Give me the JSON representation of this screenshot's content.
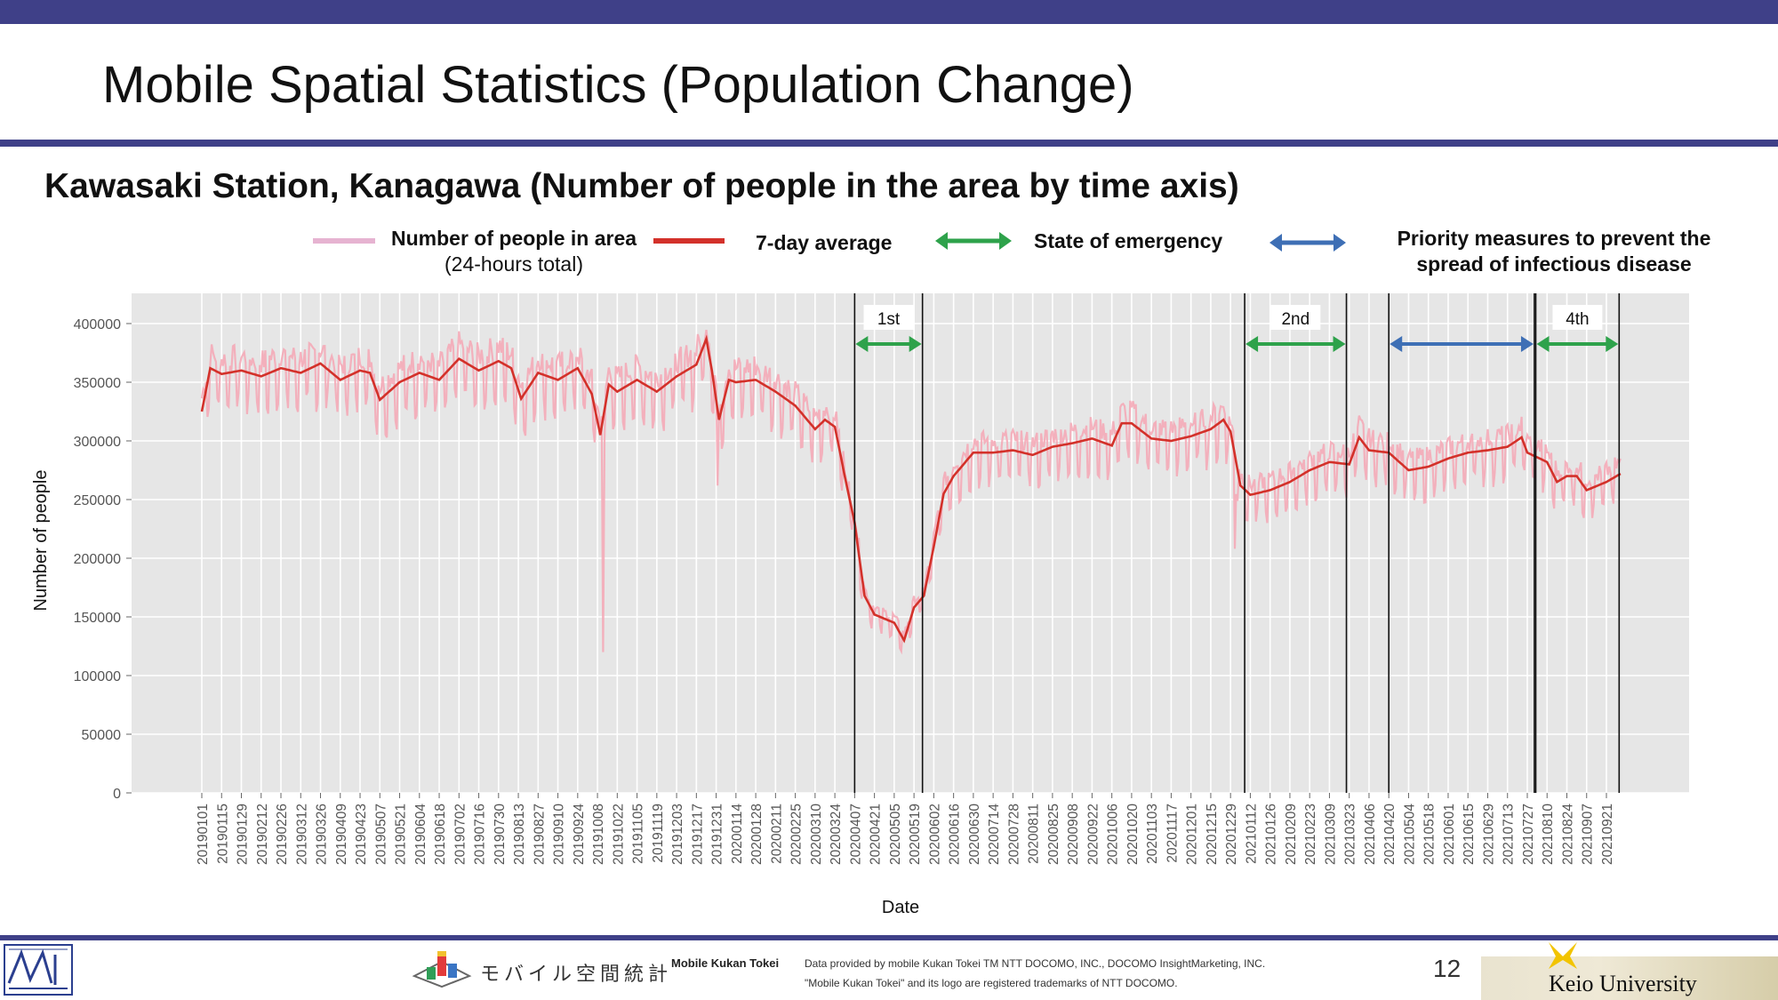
{
  "slide": {
    "title": "Mobile Spatial Statistics (Population Change)",
    "subtitle": "Kawasaki Station, Kanagawa (Number of people in the area by time axis)",
    "page_number": "12"
  },
  "legend": {
    "raw_line1": "Number of people in area",
    "raw_line2": "(24-hours total)",
    "avg": "7-day average",
    "emergency": "State of emergency",
    "priority_line1": "Priority measures to prevent the",
    "priority_line2": "spread of infectious disease"
  },
  "colors": {
    "band": "#3f4088",
    "raw": "#f4a6b4",
    "avg": "#d3312a",
    "emergency": "#2ea24b",
    "priority": "#3e6fb5",
    "panel": "#e6e6e6",
    "legend_raw": "#e6b3d1"
  },
  "footer": {
    "brand_jp": "モバイル空間統計",
    "brand_en": "Mobile Kukan Tokei",
    "credit_line1": "Data provided by mobile Kukan Tokei TM NTT DOCOMO, INC., DOCOMO InsightMarketing, INC.",
    "credit_line2": "\"Mobile Kukan Tokei\" and its logo are registered trademarks of NTT DOCOMO.",
    "university": "Keio University"
  },
  "chart_data": {
    "type": "line",
    "xlabel": "Date",
    "ylabel": "Number of people",
    "ylim": [
      0,
      420000
    ],
    "y_ticks": [
      "0",
      "50000",
      "100000",
      "150000",
      "200000",
      "250000",
      "300000",
      "350000",
      "400000"
    ],
    "x_range": [
      "2019-01-01",
      "2021-10-01"
    ],
    "x_tick_labels": [
      "20190101",
      "20190115",
      "20190129",
      "20190212",
      "20190226",
      "20190312",
      "20190326",
      "20190409",
      "20190423",
      "20190507",
      "20190521",
      "20190604",
      "20190618",
      "20190702",
      "20190716",
      "20190730",
      "20190813",
      "20190827",
      "20190910",
      "20190924",
      "20191008",
      "20191022",
      "20191105",
      "20191119",
      "20191203",
      "20191217",
      "20191231",
      "20200114",
      "20200128",
      "20200211",
      "20200225",
      "20200310",
      "20200324",
      "20200407",
      "20200421",
      "20200505",
      "20200519",
      "20200602",
      "20200616",
      "20200630",
      "20200714",
      "20200728",
      "20200811",
      "20200825",
      "20200908",
      "20200922",
      "20201006",
      "20201020",
      "20201103",
      "20201117",
      "20201201",
      "20201215",
      "20201229",
      "20210112",
      "20210126",
      "20210209",
      "20210223",
      "20210309",
      "20210323",
      "20210406",
      "20210420",
      "20210504",
      "20210518",
      "20210601",
      "20210615",
      "20210629",
      "20210713",
      "20210727",
      "20210810",
      "20210824",
      "20210907",
      "20210921"
    ],
    "grid": true,
    "legend_position": "top",
    "series": [
      {
        "name": "7-day average",
        "points": [
          [
            "2019-01-01",
            325000
          ],
          [
            "2019-01-07",
            362000
          ],
          [
            "2019-01-15",
            357000
          ],
          [
            "2019-01-29",
            360000
          ],
          [
            "2019-02-12",
            355000
          ],
          [
            "2019-02-26",
            362000
          ],
          [
            "2019-03-12",
            358000
          ],
          [
            "2019-03-26",
            366000
          ],
          [
            "2019-04-09",
            352000
          ],
          [
            "2019-04-23",
            360000
          ],
          [
            "2019-04-30",
            358000
          ],
          [
            "2019-05-07",
            335000
          ],
          [
            "2019-05-21",
            350000
          ],
          [
            "2019-06-04",
            358000
          ],
          [
            "2019-06-18",
            352000
          ],
          [
            "2019-07-02",
            370000
          ],
          [
            "2019-07-16",
            360000
          ],
          [
            "2019-07-30",
            368000
          ],
          [
            "2019-08-08",
            362000
          ],
          [
            "2019-08-15",
            336000
          ],
          [
            "2019-08-27",
            358000
          ],
          [
            "2019-09-10",
            352000
          ],
          [
            "2019-09-24",
            362000
          ],
          [
            "2019-10-04",
            340000
          ],
          [
            "2019-10-10",
            305000
          ],
          [
            "2019-10-16",
            348000
          ],
          [
            "2019-10-22",
            342000
          ],
          [
            "2019-11-05",
            352000
          ],
          [
            "2019-11-19",
            342000
          ],
          [
            "2019-12-03",
            355000
          ],
          [
            "2019-12-17",
            365000
          ],
          [
            "2019-12-24",
            387000
          ],
          [
            "2019-12-28",
            360000
          ],
          [
            "2020-01-02",
            318000
          ],
          [
            "2020-01-09",
            352000
          ],
          [
            "2020-01-14",
            350000
          ],
          [
            "2020-01-28",
            352000
          ],
          [
            "2020-02-11",
            342000
          ],
          [
            "2020-02-25",
            330000
          ],
          [
            "2020-03-10",
            310000
          ],
          [
            "2020-03-17",
            318000
          ],
          [
            "2020-03-24",
            312000
          ],
          [
            "2020-03-31",
            270000
          ],
          [
            "2020-04-07",
            230000
          ],
          [
            "2020-04-14",
            168000
          ],
          [
            "2020-04-21",
            152000
          ],
          [
            "2020-05-05",
            145000
          ],
          [
            "2020-05-12",
            130000
          ],
          [
            "2020-05-19",
            158000
          ],
          [
            "2020-05-26",
            168000
          ],
          [
            "2020-06-02",
            210000
          ],
          [
            "2020-06-09",
            255000
          ],
          [
            "2020-06-16",
            270000
          ],
          [
            "2020-06-30",
            290000
          ],
          [
            "2020-07-14",
            290000
          ],
          [
            "2020-07-28",
            292000
          ],
          [
            "2020-08-11",
            288000
          ],
          [
            "2020-08-25",
            295000
          ],
          [
            "2020-09-08",
            298000
          ],
          [
            "2020-09-22",
            302000
          ],
          [
            "2020-10-06",
            296000
          ],
          [
            "2020-10-13",
            315000
          ],
          [
            "2020-10-20",
            315000
          ],
          [
            "2020-11-03",
            302000
          ],
          [
            "2020-11-17",
            300000
          ],
          [
            "2020-12-01",
            304000
          ],
          [
            "2020-12-15",
            310000
          ],
          [
            "2020-12-24",
            318000
          ],
          [
            "2020-12-29",
            308000
          ],
          [
            "2021-01-05",
            262000
          ],
          [
            "2021-01-12",
            254000
          ],
          [
            "2021-01-26",
            258000
          ],
          [
            "2021-02-09",
            265000
          ],
          [
            "2021-02-23",
            275000
          ],
          [
            "2021-03-09",
            282000
          ],
          [
            "2021-03-23",
            280000
          ],
          [
            "2021-03-30",
            303000
          ],
          [
            "2021-04-06",
            292000
          ],
          [
            "2021-04-20",
            290000
          ],
          [
            "2021-05-04",
            275000
          ],
          [
            "2021-05-18",
            278000
          ],
          [
            "2021-06-01",
            285000
          ],
          [
            "2021-06-15",
            290000
          ],
          [
            "2021-06-29",
            292000
          ],
          [
            "2021-07-13",
            295000
          ],
          [
            "2021-07-23",
            303000
          ],
          [
            "2021-07-27",
            290000
          ],
          [
            "2021-08-10",
            282000
          ],
          [
            "2021-08-17",
            265000
          ],
          [
            "2021-08-24",
            270000
          ],
          [
            "2021-08-31",
            270000
          ],
          [
            "2021-09-07",
            258000
          ],
          [
            "2021-09-21",
            265000
          ],
          [
            "2021-10-01",
            272000
          ]
        ]
      },
      {
        "name": "Number of people in area",
        "display_note": "24-hours total",
        "low_spikes": [
          [
            "2019-10-12",
            120000
          ],
          [
            "2019-10-13",
            300000
          ],
          [
            "2020-01-01",
            262000
          ],
          [
            "2021-01-01",
            208000
          ]
        ]
      }
    ],
    "periods": [
      {
        "label": "1st",
        "type": "emergency",
        "start": "2020-04-07",
        "end": "2020-05-25"
      },
      {
        "label": "2nd",
        "type": "emergency",
        "start": "2021-01-08",
        "end": "2021-03-21"
      },
      {
        "label": "",
        "type": "priority",
        "start": "2021-04-20",
        "end": "2021-08-01"
      },
      {
        "label": "4th",
        "type": "emergency",
        "start": "2021-08-02",
        "end": "2021-09-30"
      }
    ]
  }
}
